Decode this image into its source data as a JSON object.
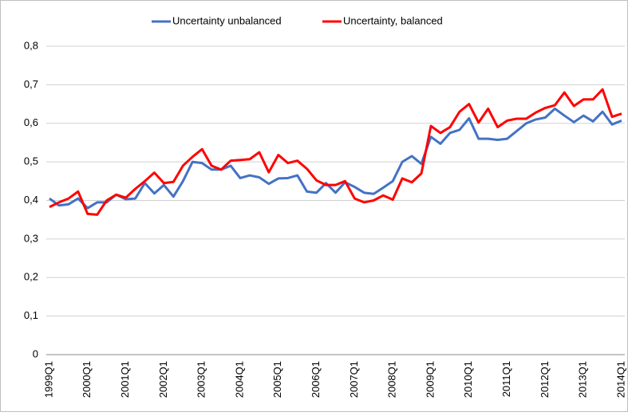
{
  "chart_data": {
    "type": "line",
    "categories": [
      "1999Q1",
      null,
      null,
      null,
      "2000Q1",
      null,
      null,
      null,
      "2001Q1",
      null,
      null,
      null,
      "2002Q1",
      null,
      null,
      null,
      "2003Q1",
      null,
      null,
      null,
      "2004Q1",
      null,
      null,
      null,
      "2005Q1",
      null,
      null,
      null,
      "2006Q1",
      null,
      null,
      null,
      "2007Q1",
      null,
      null,
      null,
      "2008Q1",
      null,
      null,
      null,
      "2009Q1",
      null,
      null,
      null,
      "2010Q1",
      null,
      null,
      null,
      "2011Q1",
      null,
      null,
      null,
      "2012Q1",
      null,
      null,
      null,
      "2013Q1",
      null,
      null,
      null,
      "2014Q1"
    ],
    "series": [
      {
        "name": "Uncertainty unbalanced",
        "color": "#4472c4",
        "values": [
          0.405,
          0.387,
          0.39,
          0.405,
          0.38,
          0.395,
          0.395,
          0.415,
          0.403,
          0.405,
          0.445,
          0.418,
          0.44,
          0.41,
          0.45,
          0.5,
          0.497,
          0.48,
          0.48,
          0.49,
          0.458,
          0.465,
          0.46,
          0.443,
          0.457,
          0.458,
          0.465,
          0.423,
          0.42,
          0.445,
          0.42,
          0.447,
          0.435,
          0.42,
          0.417,
          0.433,
          0.45,
          0.5,
          0.515,
          0.495,
          0.565,
          0.547,
          0.575,
          0.583,
          0.613,
          0.56,
          0.56,
          0.557,
          0.56,
          0.58,
          0.6,
          0.61,
          0.615,
          0.638,
          0.62,
          0.603,
          0.62,
          0.605,
          0.63,
          0.597,
          0.607
        ]
      },
      {
        "name": "Uncertainty, balanced",
        "color": "#ff0000",
        "values": [
          0.383,
          0.395,
          0.405,
          0.423,
          0.365,
          0.363,
          0.4,
          0.415,
          0.407,
          0.43,
          0.45,
          0.472,
          0.445,
          0.448,
          0.49,
          0.513,
          0.533,
          0.49,
          0.48,
          0.503,
          0.505,
          0.507,
          0.525,
          0.473,
          0.518,
          0.497,
          0.503,
          0.482,
          0.452,
          0.44,
          0.44,
          0.45,
          0.405,
          0.395,
          0.4,
          0.413,
          0.402,
          0.457,
          0.447,
          0.47,
          0.593,
          0.575,
          0.59,
          0.63,
          0.65,
          0.602,
          0.638,
          0.59,
          0.607,
          0.612,
          0.612,
          0.628,
          0.64,
          0.647,
          0.68,
          0.645,
          0.662,
          0.662,
          0.688,
          0.617,
          0.625
        ]
      }
    ],
    "ylim": [
      0,
      0.8
    ],
    "yticks": [
      0,
      {
        "value": 0.1,
        "label": "0,1"
      },
      {
        "value": 0.2,
        "label": "0,2"
      },
      {
        "value": 0.3,
        "label": "0,3"
      },
      {
        "value": 0.4,
        "label": "0,4"
      },
      {
        "value": 0.5,
        "label": "0,5"
      },
      {
        "value": 0.6,
        "label": "0,6"
      },
      {
        "value": 0.7,
        "label": "0,7"
      },
      {
        "value": 0.8,
        "label": "0,8"
      }
    ],
    "grid": true,
    "legend": "top"
  }
}
